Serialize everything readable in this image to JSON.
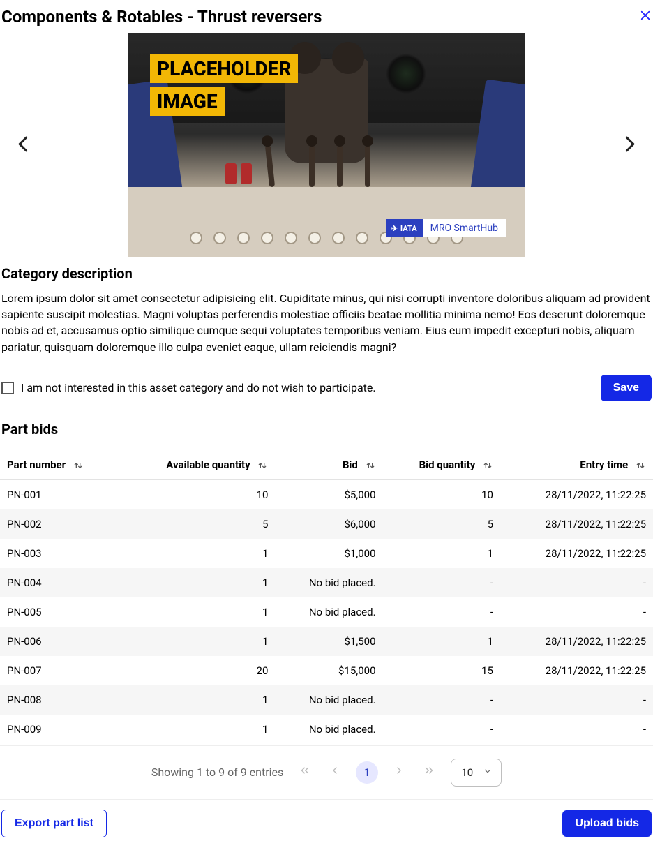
{
  "colors": {
    "primary": "#1428e6",
    "close_icon": "#1f1fff",
    "hero_label_bg": "#f2b705",
    "badge_blue": "#2b3fbf",
    "page_pill_bg": "#e6e7ff",
    "row_alt_bg": "#f6f6f6",
    "border": "#e3e3e3"
  },
  "header": {
    "title": "Components & Rotables - Thrust reversers"
  },
  "hero": {
    "placeholder_line1": "PLACEHOLDER",
    "placeholder_line2": "IMAGE",
    "badge_iata": "IATA",
    "badge_text": "MRO SmartHub"
  },
  "description": {
    "heading": "Category description",
    "text": "Lorem ipsum dolor sit amet consectetur adipisicing elit. Cupiditate minus, qui nisi corrupti inventore doloribus aliquam ad provident sapiente suscipit molestias. Magni voluptas perferendis molestiae officiis beatae mollitia minima nemo! Eos deserunt doloremque nobis ad et, accusamus optio similique cumque sequi voluptates temporibus veniam. Eius eum impedit excepturi nobis, aliquam pariatur, quisquam doloremque illo culpa eveniet eaque, ullam reiciendis magni?"
  },
  "optout": {
    "label": "I am not interested in this asset category and do not wish to participate.",
    "checked": false,
    "save": "Save"
  },
  "bids": {
    "heading": "Part bids",
    "columns": {
      "part_number": "Part number",
      "available_qty": "Available quantity",
      "bid": "Bid",
      "bid_qty": "Bid quantity",
      "entry_time": "Entry time"
    },
    "no_bid_text": "No bid placed.",
    "dash": "-",
    "rows": [
      {
        "pn": "PN-001",
        "avail": "10",
        "bid": "$5,000",
        "bid_qty": "10",
        "time": "28/11/2022, 11:22:25"
      },
      {
        "pn": "PN-002",
        "avail": "5",
        "bid": "$6,000",
        "bid_qty": "5",
        "time": "28/11/2022, 11:22:25"
      },
      {
        "pn": "PN-003",
        "avail": "1",
        "bid": "$1,000",
        "bid_qty": "1",
        "time": "28/11/2022, 11:22:25"
      },
      {
        "pn": "PN-004",
        "avail": "1",
        "bid": "No bid placed.",
        "bid_qty": "-",
        "time": "-"
      },
      {
        "pn": "PN-005",
        "avail": "1",
        "bid": "No bid placed.",
        "bid_qty": "-",
        "time": "-"
      },
      {
        "pn": "PN-006",
        "avail": "1",
        "bid": "$1,500",
        "bid_qty": "1",
        "time": "28/11/2022, 11:22:25"
      },
      {
        "pn": "PN-007",
        "avail": "20",
        "bid": "$15,000",
        "bid_qty": "15",
        "time": "28/11/2022, 11:22:25"
      },
      {
        "pn": "PN-008",
        "avail": "1",
        "bid": "No bid placed.",
        "bid_qty": "-",
        "time": "-"
      },
      {
        "pn": "PN-009",
        "avail": "1",
        "bid": "No bid placed.",
        "bid_qty": "-",
        "time": "-"
      }
    ]
  },
  "pager": {
    "summary": "Showing 1 to 9 of 9 entries",
    "current_page": "1",
    "page_size": "10"
  },
  "footer": {
    "export": "Export part list",
    "upload": "Upload bids"
  }
}
